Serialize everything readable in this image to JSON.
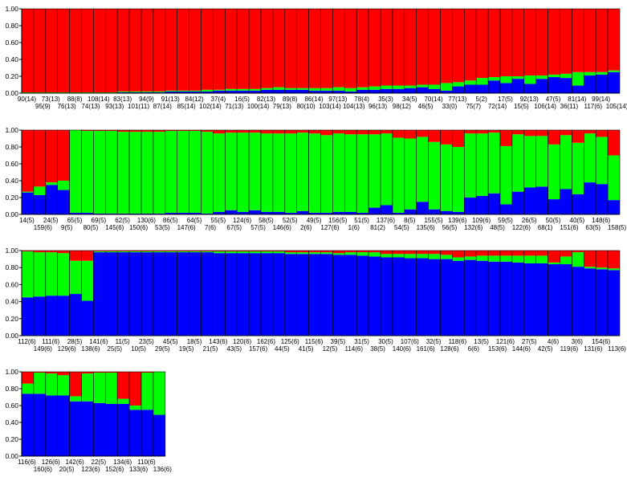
{
  "colors": {
    "cluster_1": "#0000ff",
    "cluster_2": "#00ff00",
    "cluster_3": "#ff0000",
    "bar_outline": "#000000",
    "axis": "#000000"
  },
  "chart_data": [
    {
      "type": "bar",
      "stacked": true,
      "ylim": [
        0,
        1
      ],
      "yticks": [
        "0.00",
        "0.20",
        "0.40",
        "0.60",
        "0.80",
        "1.00"
      ],
      "grid": false,
      "legend": "none",
      "categories": [
        "90(14)",
        "95(9)",
        "73(13)",
        "76(13)",
        "88(8)",
        "74(13)",
        "108(14)",
        "93(13)",
        "83(13)",
        "101(11)",
        "94(9)",
        "87(14)",
        "91(13)",
        "85(14)",
        "84(12)",
        "102(14)",
        "37(4)",
        "71(13)",
        "16(5)",
        "100(14)",
        "82(13)",
        "79(13)",
        "89(8)",
        "80(10)",
        "86(14)",
        "103(14)",
        "97(13)",
        "104(13)",
        "78(4)",
        "96(13)",
        "35(3)",
        "98(12)",
        "34(5)",
        "46(5)",
        "70(14)",
        "33(0)",
        "77(13)",
        "75(7)",
        "5(2)",
        "72(14)",
        "17(5)",
        "15(5)",
        "92(13)",
        "106(14)",
        "47(5)",
        "36(11)",
        "81(14)",
        "117(6)",
        "99(14)",
        "105(14)"
      ],
      "series": [
        {
          "cluster": 1,
          "values": [
            0,
            0,
            0,
            0,
            0,
            0,
            0,
            0,
            0.01,
            0.01,
            0.01,
            0.01,
            0.02,
            0.02,
            0.02,
            0.02,
            0.03,
            0.03,
            0.03,
            0.03,
            0.04,
            0.04,
            0.04,
            0.04,
            0.03,
            0.03,
            0.03,
            0.02,
            0.04,
            0.04,
            0.05,
            0.05,
            0.06,
            0.07,
            0.05,
            0.03,
            0.08,
            0.1,
            0.1,
            0.15,
            0.12,
            0.17,
            0.11,
            0.17,
            0.19,
            0.18,
            0.09,
            0.21,
            0.22,
            0.25
          ]
        },
        {
          "cluster": 2,
          "values": [
            0.01,
            0.01,
            0.01,
            0.01,
            0.01,
            0.01,
            0.01,
            0.01,
            0.01,
            0.01,
            0.01,
            0.01,
            0.01,
            0.01,
            0.01,
            0.02,
            0.01,
            0.02,
            0.02,
            0.02,
            0.02,
            0.03,
            0.02,
            0.02,
            0.03,
            0.03,
            0.04,
            0.04,
            0.03,
            0.04,
            0.04,
            0.04,
            0.03,
            0.03,
            0.05,
            0.09,
            0.05,
            0.05,
            0.08,
            0.04,
            0.08,
            0.03,
            0.1,
            0.04,
            0.03,
            0.05,
            0.16,
            0.04,
            0.03,
            0.02
          ]
        },
        {
          "cluster": 3,
          "values": [
            0.99,
            0.99,
            0.99,
            0.99,
            0.99,
            0.99,
            0.99,
            0.99,
            0.98,
            0.98,
            0.98,
            0.98,
            0.97,
            0.97,
            0.97,
            0.96,
            0.96,
            0.95,
            0.95,
            0.95,
            0.94,
            0.93,
            0.94,
            0.94,
            0.94,
            0.94,
            0.93,
            0.94,
            0.93,
            0.92,
            0.91,
            0.91,
            0.91,
            0.9,
            0.9,
            0.88,
            0.87,
            0.85,
            0.82,
            0.81,
            0.8,
            0.8,
            0.79,
            0.79,
            0.78,
            0.77,
            0.75,
            0.75,
            0.75,
            0.73
          ]
        }
      ]
    },
    {
      "type": "bar",
      "stacked": true,
      "ylim": [
        0,
        1
      ],
      "yticks": [
        "0.00",
        "0.20",
        "0.40",
        "0.60",
        "0.80",
        "1.00"
      ],
      "grid": false,
      "legend": "none",
      "categories": [
        "14(5)",
        "159(6)",
        "24(5)",
        "9(5)",
        "65(5)",
        "80(5)",
        "69(5)",
        "145(6)",
        "62(5)",
        "150(6)",
        "130(6)",
        "53(5)",
        "86(5)",
        "147(6)",
        "64(5)",
        "7(6)",
        "55(5)",
        "67(5)",
        "124(6)",
        "57(5)",
        "58(5)",
        "146(6)",
        "52(5)",
        "2(6)",
        "49(5)",
        "127(6)",
        "156(5)",
        "1(6)",
        "51(5)",
        "81(2)",
        "137(6)",
        "54(5)",
        "8(5)",
        "135(6)",
        "155(5)",
        "56(5)",
        "139(6)",
        "132(6)",
        "109(6)",
        "48(5)",
        "59(5)",
        "122(6)",
        "26(5)",
        "68(1)",
        "50(5)",
        "151(6)",
        "40(5)",
        "63(5)",
        "148(6)",
        "158(5)"
      ],
      "series": [
        {
          "cluster": 1,
          "values": [
            0.26,
            0.23,
            0.35,
            0.29,
            0.02,
            0.02,
            0.01,
            0.01,
            0.01,
            0.01,
            0.01,
            0.01,
            0.02,
            0.02,
            0.02,
            0.01,
            0.03,
            0.05,
            0.03,
            0.05,
            0.03,
            0.03,
            0.02,
            0.04,
            0.02,
            0.02,
            0.03,
            0.03,
            0.02,
            0.08,
            0.11,
            0.02,
            0.06,
            0.15,
            0.06,
            0.04,
            0.03,
            0.2,
            0.22,
            0.25,
            0.12,
            0.27,
            0.32,
            0.33,
            0.18,
            0.3,
            0.24,
            0.38,
            0.36,
            0.17
          ]
        },
        {
          "cluster": 2,
          "values": [
            0.01,
            0.1,
            0.03,
            0.11,
            0.98,
            0.97,
            0.98,
            0.98,
            0.97,
            0.97,
            0.97,
            0.97,
            0.97,
            0.97,
            0.97,
            0.97,
            0.93,
            0.92,
            0.94,
            0.92,
            0.93,
            0.93,
            0.94,
            0.93,
            0.94,
            0.92,
            0.93,
            0.92,
            0.93,
            0.87,
            0.85,
            0.89,
            0.84,
            0.77,
            0.8,
            0.79,
            0.77,
            0.76,
            0.74,
            0.72,
            0.69,
            0.68,
            0.61,
            0.6,
            0.65,
            0.64,
            0.61,
            0.58,
            0.56,
            0.53
          ]
        },
        {
          "cluster": 3,
          "values": [
            0.73,
            0.67,
            0.62,
            0.6,
            0,
            0.01,
            0.01,
            0.01,
            0.02,
            0.02,
            0.02,
            0.02,
            0.01,
            0.01,
            0.01,
            0.02,
            0.04,
            0.03,
            0.03,
            0.03,
            0.04,
            0.04,
            0.04,
            0.03,
            0.04,
            0.06,
            0.04,
            0.05,
            0.05,
            0.05,
            0.04,
            0.09,
            0.1,
            0.08,
            0.14,
            0.17,
            0.2,
            0.04,
            0.04,
            0.03,
            0.19,
            0.05,
            0.07,
            0.07,
            0.17,
            0.06,
            0.15,
            0.04,
            0.08,
            0.3
          ]
        }
      ]
    },
    {
      "type": "bar",
      "stacked": true,
      "ylim": [
        0,
        1
      ],
      "yticks": [
        "0.00",
        "0.20",
        "0.40",
        "0.60",
        "0.80",
        "1.00"
      ],
      "grid": false,
      "legend": "none",
      "categories": [
        "112(6)",
        "149(6)",
        "111(6)",
        "129(6)",
        "28(5)",
        "138(6)",
        "141(6)",
        "25(5)",
        "11(5)",
        "10(5)",
        "23(5)",
        "29(5)",
        "45(5)",
        "19(5)",
        "18(5)",
        "21(5)",
        "143(6)",
        "43(5)",
        "120(6)",
        "157(6)",
        "162(6)",
        "44(5)",
        "125(6)",
        "41(5)",
        "115(6)",
        "12(5)",
        "39(5)",
        "114(6)",
        "31(5)",
        "38(5)",
        "30(5)",
        "140(6)",
        "107(6)",
        "161(6)",
        "32(5)",
        "128(6)",
        "118(6)",
        "6(6)",
        "13(5)",
        "153(6)",
        "121(6)",
        "144(6)",
        "27(5)",
        "42(5)",
        "4(6)",
        "119(6)",
        "3(6)",
        "131(6)",
        "154(6)",
        "113(6)"
      ],
      "series": [
        {
          "cluster": 1,
          "values": [
            0.45,
            0.46,
            0.47,
            0.47,
            0.49,
            0.41,
            0.98,
            0.98,
            0.98,
            0.98,
            0.98,
            0.98,
            0.98,
            0.98,
            0.98,
            0.98,
            0.97,
            0.97,
            0.97,
            0.97,
            0.97,
            0.97,
            0.96,
            0.96,
            0.96,
            0.96,
            0.95,
            0.95,
            0.94,
            0.93,
            0.92,
            0.92,
            0.91,
            0.91,
            0.9,
            0.9,
            0.88,
            0.89,
            0.88,
            0.87,
            0.87,
            0.86,
            0.85,
            0.85,
            0.84,
            0.84,
            0.81,
            0.79,
            0.78,
            0.77
          ]
        },
        {
          "cluster": 2,
          "values": [
            0.54,
            0.52,
            0.51,
            0.5,
            0.39,
            0.47,
            0.01,
            0.01,
            0.01,
            0.01,
            0.01,
            0.01,
            0.01,
            0.01,
            0.01,
            0.01,
            0.02,
            0.02,
            0.02,
            0.02,
            0.02,
            0.02,
            0.02,
            0.02,
            0.02,
            0.02,
            0.02,
            0.03,
            0.04,
            0.05,
            0.04,
            0.04,
            0.05,
            0.05,
            0.06,
            0.05,
            0.04,
            0.04,
            0.06,
            0.07,
            0.07,
            0.08,
            0.09,
            0.09,
            0.02,
            0.09,
            0.17,
            0.02,
            0.02,
            0.02
          ]
        },
        {
          "cluster": 3,
          "values": [
            0.01,
            0.02,
            0.02,
            0.03,
            0.12,
            0.12,
            0.01,
            0.01,
            0.01,
            0.01,
            0.01,
            0.01,
            0.01,
            0.01,
            0.01,
            0.01,
            0.01,
            0.01,
            0.01,
            0.01,
            0.01,
            0.01,
            0.02,
            0.02,
            0.02,
            0.02,
            0.03,
            0.02,
            0.02,
            0.02,
            0.04,
            0.04,
            0.04,
            0.04,
            0.04,
            0.05,
            0.08,
            0.07,
            0.06,
            0.06,
            0.06,
            0.06,
            0.06,
            0.06,
            0.14,
            0.07,
            0.02,
            0.19,
            0.2,
            0.21
          ]
        }
      ]
    },
    {
      "type": "bar",
      "stacked": true,
      "ylim": [
        0,
        1
      ],
      "yticks": [
        "0.00",
        "0.20",
        "0.40",
        "0.60",
        "0.80",
        "1.00"
      ],
      "grid": false,
      "legend": "none",
      "categories": [
        "116(6)",
        "160(6)",
        "126(6)",
        "20(5)",
        "142(6)",
        "123(6)",
        "22(5)",
        "152(6)",
        "134(6)",
        "133(6)",
        "110(6)",
        "136(6)"
      ],
      "series": [
        {
          "cluster": 1,
          "values": [
            0.74,
            0.74,
            0.72,
            0.72,
            0.65,
            0.65,
            0.63,
            0.62,
            0.62,
            0.55,
            0.55,
            0.49
          ]
        },
        {
          "cluster": 2,
          "values": [
            0.12,
            0.25,
            0.26,
            0.24,
            0.06,
            0.33,
            0.36,
            0.37,
            0.06,
            0.05,
            0.44,
            0.51
          ]
        },
        {
          "cluster": 3,
          "values": [
            0.14,
            0.01,
            0.02,
            0.04,
            0.29,
            0.02,
            0.01,
            0.01,
            0.32,
            0.4,
            0.01,
            0
          ]
        }
      ]
    }
  ]
}
